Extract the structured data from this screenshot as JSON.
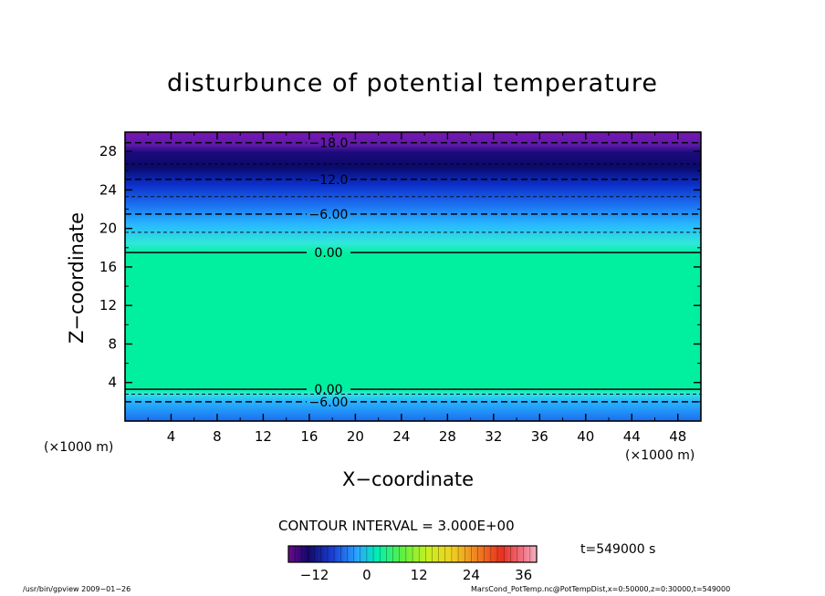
{
  "chart_data": {
    "type": "heatmap",
    "title": "disturbunce of potential temperature",
    "xlabel": "X−coordinate",
    "ylabel": "Z−coordinate",
    "x_unit_left": "(×1000 m)",
    "x_unit_right": "(×1000 m)",
    "xlim": [
      0,
      50
    ],
    "ylim": [
      0,
      30
    ],
    "x_ticks": [
      4,
      8,
      12,
      16,
      20,
      24,
      28,
      32,
      36,
      40,
      44,
      48
    ],
    "y_ticks": [
      4,
      8,
      12,
      16,
      20,
      24,
      28
    ],
    "contour_interval_text": "CONTOUR INTERVAL = 3.000E+00",
    "time_text": "t=549000 s",
    "footer_left": "/usr/bin/gpview   2009−01−26",
    "footer_right": "MarsCond_PotTemp.nc@PotTempDist,x=0:50000,z=0:30000,t=549000",
    "contours": [
      {
        "level": -18,
        "label": "−18.0",
        "z": 28.9
      },
      {
        "level": -15,
        "label": "",
        "z": 26.7
      },
      {
        "level": -12,
        "label": "−12.0",
        "z": 25.1
      },
      {
        "level": -9,
        "label": "",
        "z": 23.3
      },
      {
        "level": -6,
        "label": "−6.00",
        "z": 21.5
      },
      {
        "level": -3,
        "label": "",
        "z": 19.6
      },
      {
        "level": 0,
        "label": "0.00",
        "z": 17.5
      },
      {
        "level": 0,
        "label": "0.00",
        "z": 3.3
      },
      {
        "level": -3,
        "label": "",
        "z": 2.8
      },
      {
        "level": -6,
        "label": "−6.00",
        "z": 2.0
      }
    ],
    "colorbar": {
      "min": -18,
      "max": 39,
      "ticks": [
        -12,
        0,
        12,
        24,
        36
      ],
      "tick_labels": [
        "−12",
        "0",
        "12",
        "24",
        "36"
      ]
    }
  }
}
